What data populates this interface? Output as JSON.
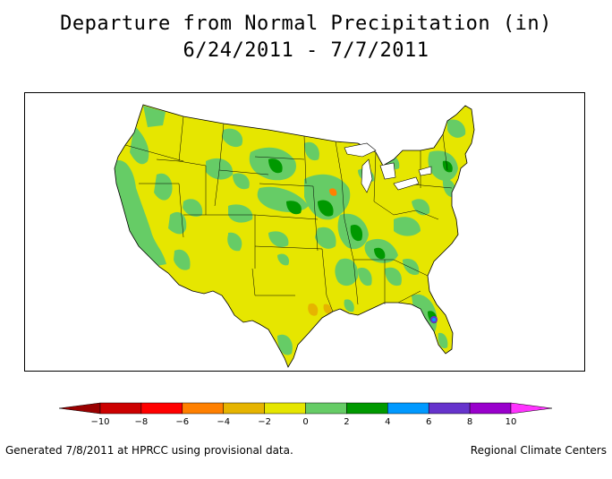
{
  "title": {
    "line1": "Departure from Normal Precipitation (in)",
    "line2": "6/24/2011 - 7/7/2011"
  },
  "map": {
    "region": "Contiguous United States",
    "base_color": "#e6e600",
    "land_outline": "#000000"
  },
  "legend": {
    "ticks": [
      "-10",
      "-8",
      "-6",
      "-4",
      "-2",
      "0",
      "2",
      "4",
      "6",
      "8",
      "10"
    ],
    "bins": [
      {
        "from": -10,
        "to": -8,
        "color": "#cc0000"
      },
      {
        "from": -8,
        "to": -6,
        "color": "#ff0000"
      },
      {
        "from": -6,
        "to": -4,
        "color": "#ff8000"
      },
      {
        "from": -4,
        "to": -2,
        "color": "#e6b400"
      },
      {
        "from": -2,
        "to": 0,
        "color": "#e6e600"
      },
      {
        "from": 0,
        "to": 2,
        "color": "#66cc66"
      },
      {
        "from": 2,
        "to": 4,
        "color": "#009900"
      },
      {
        "from": 4,
        "to": 6,
        "color": "#0099ff"
      },
      {
        "from": 6,
        "to": 8,
        "color": "#6633cc"
      },
      {
        "from": 8,
        "to": 10,
        "color": "#9900cc"
      }
    ],
    "low_end_color": "#990000",
    "high_end_color": "#ff33ff"
  },
  "footer": {
    "left": "Generated 7/8/2011 at HPRCC using provisional data.",
    "right": "Regional Climate Centers"
  }
}
